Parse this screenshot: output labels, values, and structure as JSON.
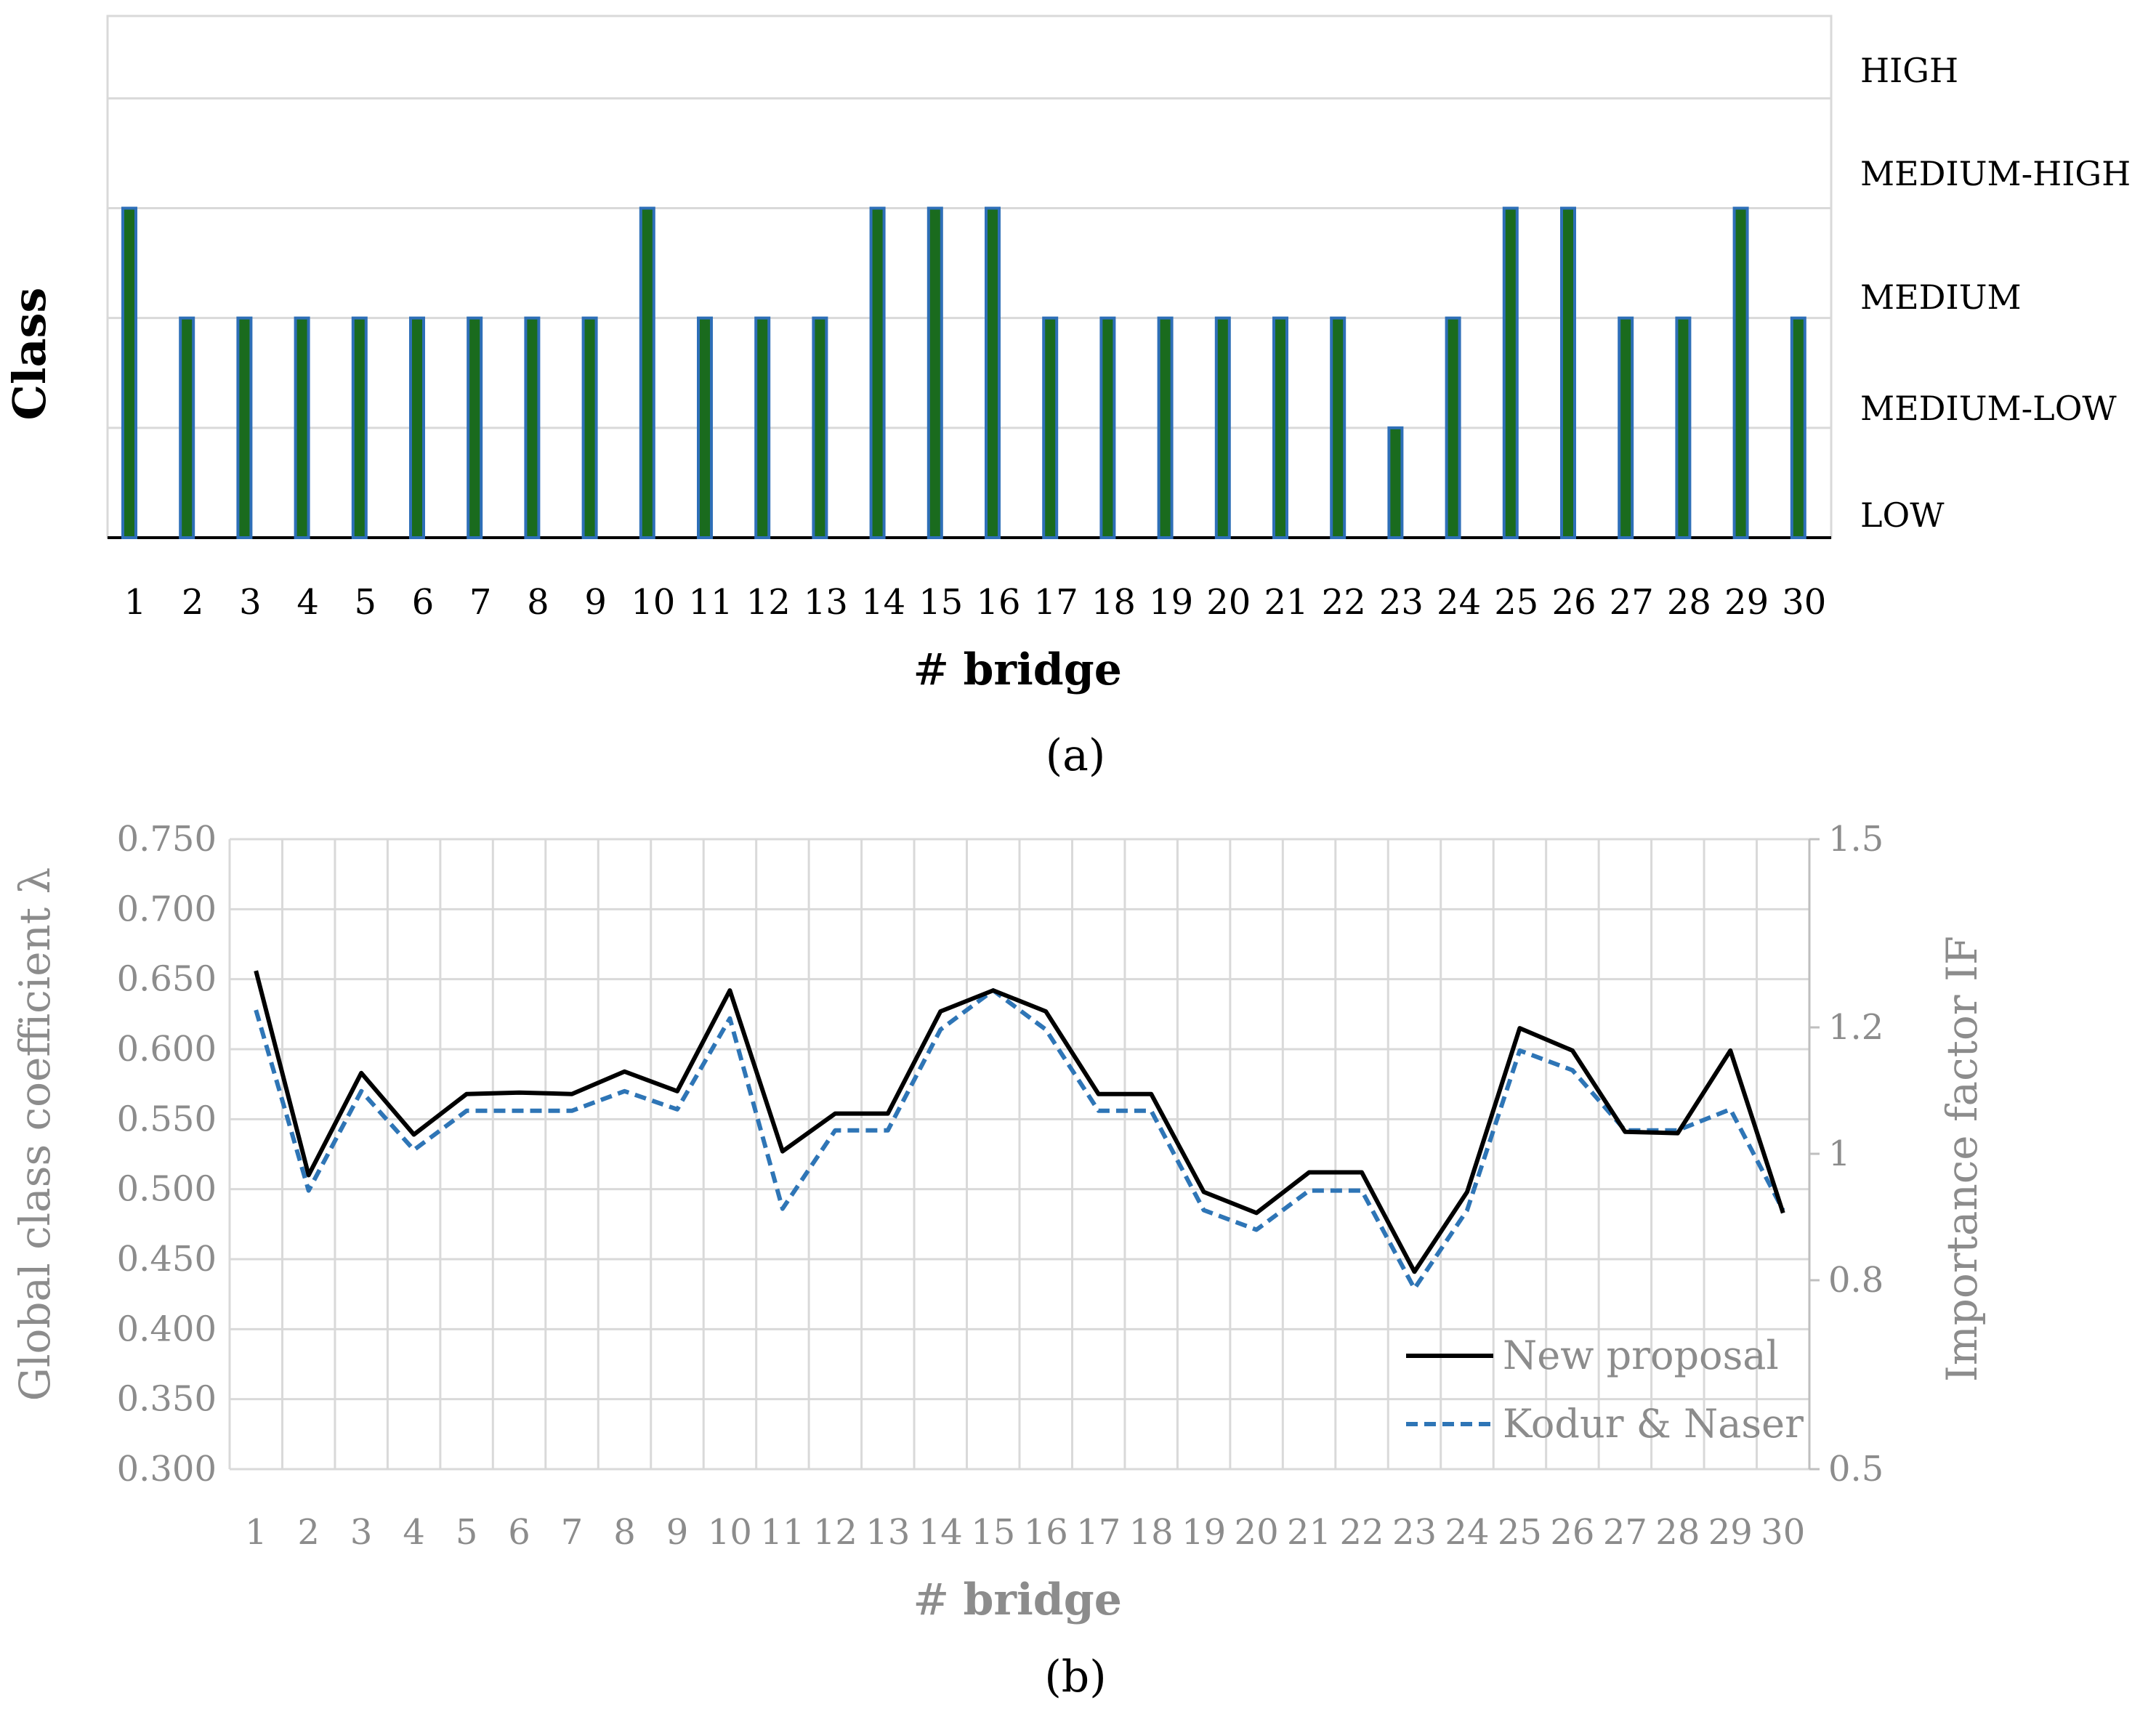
{
  "chart_data": [
    {
      "type": "bar",
      "panel_label": "(a)",
      "ylabel": "Class",
      "xlabel_prefix": "#",
      "xlabel_bold": "bridge",
      "categories": [
        "1",
        "2",
        "3",
        "4",
        "5",
        "6",
        "7",
        "8",
        "9",
        "10",
        "11",
        "12",
        "13",
        "14",
        "15",
        "16",
        "17",
        "18",
        "19",
        "20",
        "21",
        "22",
        "23",
        "24",
        "25",
        "26",
        "27",
        "28",
        "29",
        "30"
      ],
      "class_labels": [
        "LOW",
        "MEDIUM-LOW",
        "MEDIUM",
        "MEDIUM-HIGH",
        "HIGH"
      ],
      "values": [
        "MEDIUM-HIGH",
        "MEDIUM",
        "MEDIUM",
        "MEDIUM",
        "MEDIUM",
        "MEDIUM",
        "MEDIUM",
        "MEDIUM",
        "MEDIUM",
        "MEDIUM-HIGH",
        "MEDIUM",
        "MEDIUM",
        "MEDIUM",
        "MEDIUM-HIGH",
        "MEDIUM-HIGH",
        "MEDIUM-HIGH",
        "MEDIUM",
        "MEDIUM",
        "MEDIUM",
        "MEDIUM",
        "MEDIUM",
        "MEDIUM",
        "MEDIUM-LOW",
        "MEDIUM",
        "MEDIUM-HIGH",
        "MEDIUM-HIGH",
        "MEDIUM",
        "MEDIUM",
        "MEDIUM-HIGH",
        "MEDIUM"
      ],
      "grid": true,
      "bar_fill": "#1a6b1e",
      "bar_edge": "#2e6fb8"
    },
    {
      "type": "line",
      "panel_label": "(b)",
      "ylabel": "Global class coefficient λ",
      "y2label": "Importance factor IF",
      "xlabel_prefix": "#",
      "xlabel_bold": "bridge",
      "x": [
        "1",
        "2",
        "3",
        "4",
        "5",
        "6",
        "7",
        "8",
        "9",
        "10",
        "11",
        "12",
        "13",
        "14",
        "15",
        "16",
        "17",
        "18",
        "19",
        "20",
        "21",
        "22",
        "23",
        "24",
        "25",
        "26",
        "27",
        "28",
        "29",
        "30"
      ],
      "ylim": [
        0.3,
        0.75
      ],
      "yticks": [
        "0.300",
        "0.350",
        "0.400",
        "0.450",
        "0.500",
        "0.550",
        "0.600",
        "0.650",
        "0.700",
        "0.750"
      ],
      "y2ticks": [
        "0.5",
        "0.8",
        "1",
        "1.2",
        "1.5"
      ],
      "grid": true,
      "legend_position": "bottom-right",
      "series": [
        {
          "name": "New proposal",
          "color": "#000000",
          "style": "solid",
          "values": [
            0.656,
            0.51,
            0.583,
            0.539,
            0.568,
            0.569,
            0.568,
            0.584,
            0.57,
            0.642,
            0.527,
            0.554,
            0.554,
            0.627,
            0.642,
            0.627,
            0.568,
            0.568,
            0.498,
            0.483,
            0.512,
            0.512,
            0.441,
            0.498,
            0.615,
            0.599,
            0.541,
            0.54,
            0.599,
            0.483
          ]
        },
        {
          "name": "Kodur & Naser",
          "color": "#2e75b6",
          "style": "dashed",
          "values": [
            0.628,
            0.499,
            0.57,
            0.528,
            0.556,
            0.556,
            0.556,
            0.57,
            0.557,
            0.622,
            0.486,
            0.542,
            0.542,
            0.614,
            0.642,
            0.614,
            0.556,
            0.556,
            0.485,
            0.471,
            0.499,
            0.499,
            0.429,
            0.485,
            0.599,
            0.585,
            0.542,
            0.542,
            0.557,
            0.485
          ]
        }
      ]
    }
  ]
}
